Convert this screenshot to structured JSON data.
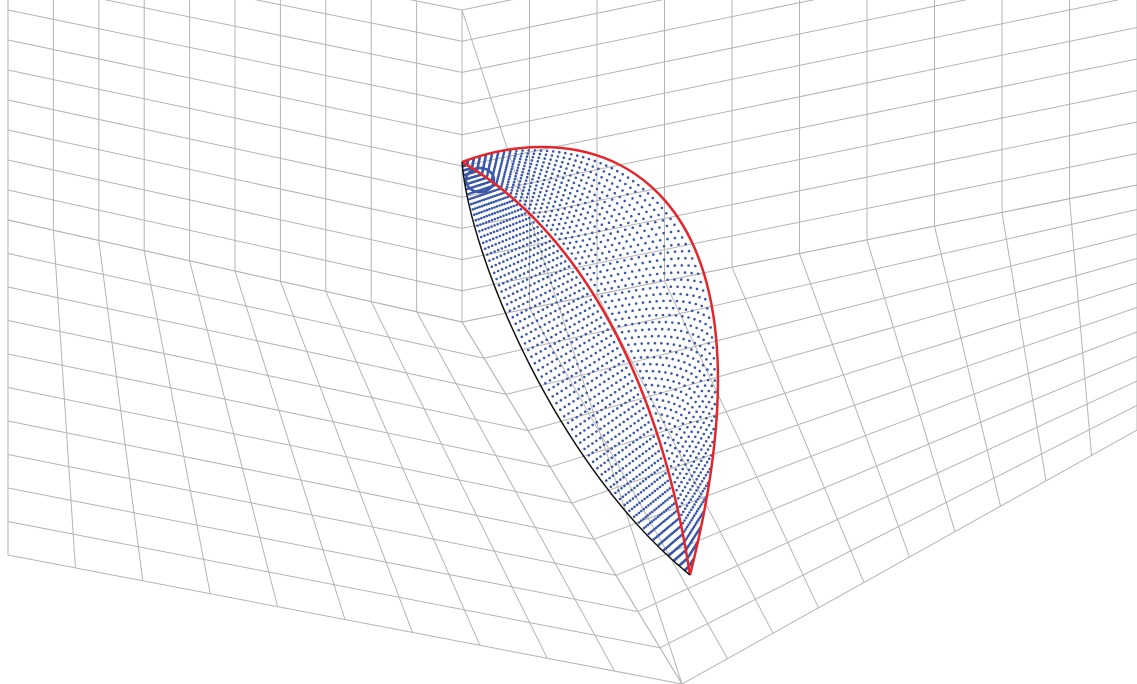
{
  "chart_data": {
    "type": "scatter",
    "dimensions": 3,
    "title": "",
    "xlabel": "",
    "ylabel": "",
    "zlabel": "",
    "grid": true,
    "legend": "none",
    "tick_labels": "none",
    "colors": {
      "background": "#ffffff",
      "grid": "#b4b4b4",
      "point_cloud": "#3a57a9",
      "boundary_curves": "#e3262b",
      "edge_curve": "#111111"
    },
    "series": [
      {
        "kind": "dotted point cloud (fan of curves)",
        "color": "#3a57a9"
      },
      {
        "kind": "outer boundary curves",
        "color": "#e3262b"
      },
      {
        "kind": "lower edge curve",
        "color": "#111111"
      }
    ]
  }
}
